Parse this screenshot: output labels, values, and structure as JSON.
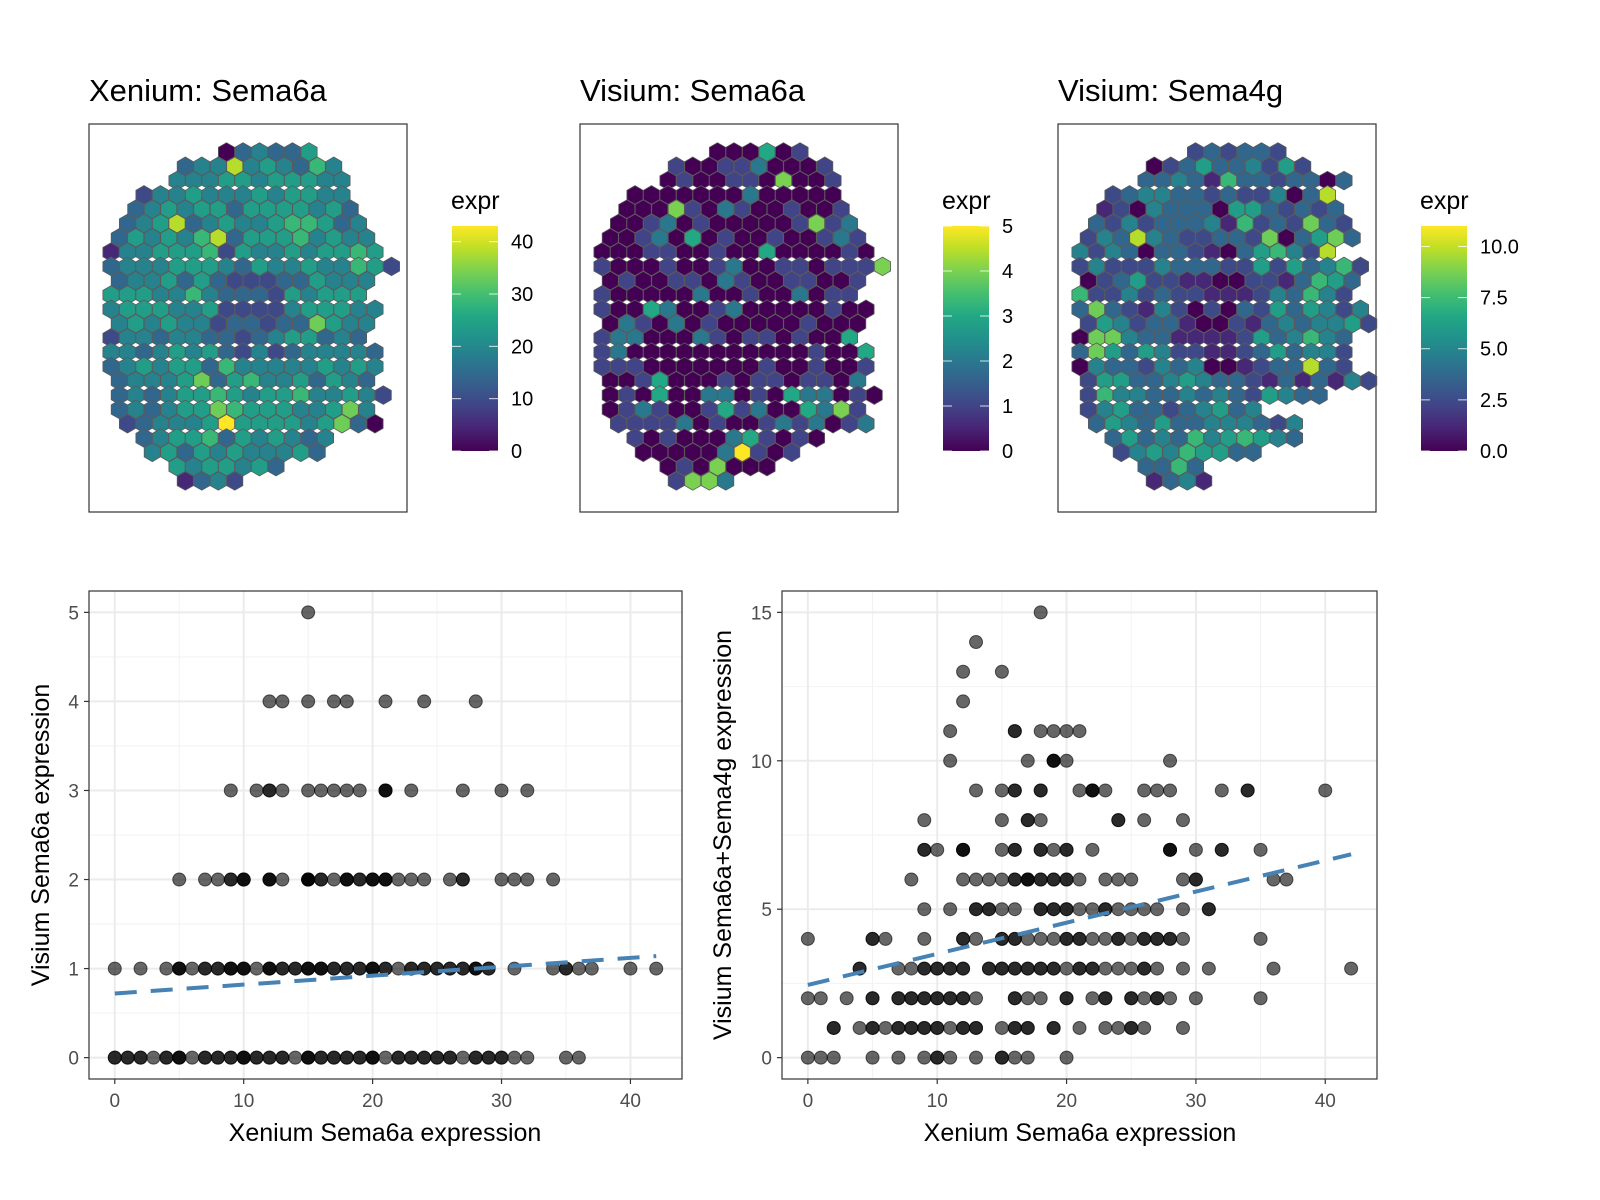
{
  "figure": {
    "hexmaps": [
      {
        "title": "Xenium: Sema6a",
        "legend_title": "expr",
        "range": [
          0,
          43
        ],
        "ticks": [
          0,
          10,
          20,
          30,
          40
        ],
        "tick_labels": [
          "0",
          "10",
          "20",
          "30",
          "40"
        ],
        "value_scale": "digit d maps to value d/9 * 43",
        "rows": [
          "034335",
          "3448454364",
          "44455455544",
          "2445444545544",
          "34545535555453",
          "345834544566534",
          "3545468355564544",
          "14455562544545565",
          "344455543544544652",
          "3445353222335444",
          "5554464333254555",
          "45554452222455544",
          "4545442332337544",
          "2443443323455343",
          "44345453242344443",
          "34545536444445454",
          "3444573564453543",
          "34345565455644542",
          "3434557655544574",
          "2344459555545730",
          "345563545434",
          "45354544453",
          "5455453",
          "1342"
        ]
      },
      {
        "title": "Visium: Sema6a",
        "legend_title": "expr",
        "range": [
          0,
          5
        ],
        "ticks": [
          0,
          1,
          2,
          3,
          4,
          5
        ],
        "tick_labels": [
          "0",
          "1",
          "2",
          "3",
          "4",
          "5"
        ],
        "value_scale": "digit d is the expression value",
        "rows": [
          "000301",
          "1001120001",
          "01001104001",
          "0000000200000",
          "00041021001001",
          "001201000001412",
          "0012030100100121",
          "00011001003000010",
          "100010012001101114",
          "0100110210011001",
          "1000002001002011",
          "10032001200000100",
          "0210201000001000",
          "1220002101101003",
          "12000000000001003",
          "11100000001001001",
          "0013000101101102",
          "01030022010322010",
          "0121001312003241",
          "1111201001212012",
          "101000231010",
          "0000025101",
          "0104000",
          "1442"
        ]
      },
      {
        "title": "Visium: Sema4g",
        "legend_title": "expr",
        "range": [
          0,
          11
        ],
        "ticks": [
          0,
          2.5,
          5,
          7.5,
          10
        ],
        "tick_labels": [
          "0.0",
          "2.5",
          "5.0",
          "7.5",
          "10.0"
        ],
        "value_scale": "digit d maps to value d/9 * 11",
        "rows": [
          "232332",
          "0235334252",
          "3343163323303",
          "23443323224038",
          "120433305532323",
          "3242333416232732",
          "24384322332703573",
          "4243033210356428",
          "242224333225253462",
          "02352211002213653",
          "62242322111243642",
          "373214202032535424",
          "254233100213434452",
          "07743311112534643",
          "37535422112353442",
          "04332434001233832",
          "255334543321313142",
          "264433434325433",
          "24533234534",
          "3543533444324",
          "353436456543",
          "245465533",
          "3363",
          "1341"
        ]
      }
    ],
    "chart_data": [
      {
        "type": "scatter",
        "title": "",
        "xlabel": "Xenium Sema6a expression",
        "ylabel": "Visium Sema6a expression",
        "xlim": [
          -2,
          44
        ],
        "ylim": [
          -0.24,
          5.24
        ],
        "xticks": [
          0,
          10,
          20,
          30,
          40
        ],
        "yticks": [
          0,
          1,
          2,
          3,
          4,
          5
        ],
        "grid": true,
        "point_alpha": 0.6,
        "trend_line": {
          "style": "dashed",
          "color": "#4682B4",
          "x": [
            0,
            42
          ],
          "y": [
            0.72,
            1.14
          ]
        },
        "rows": [
          {
            "y": 5,
            "x": [
              15
            ]
          },
          {
            "y": 4,
            "x": [
              12,
              13,
              15,
              17,
              18,
              21,
              24,
              28
            ]
          },
          {
            "y": 3,
            "x": [
              9,
              11,
              12,
              12,
              13,
              15,
              16,
              17,
              18,
              19,
              21,
              21,
              21,
              23,
              27,
              30,
              32
            ]
          },
          {
            "y": 2,
            "x": [
              5,
              7,
              8,
              9,
              9,
              10,
              10,
              10,
              12,
              12,
              12,
              13,
              15,
              15,
              15,
              15,
              16,
              16,
              17,
              18,
              18,
              18,
              19,
              19,
              20,
              20,
              20,
              21,
              21,
              21,
              22,
              23,
              24,
              26,
              27,
              27,
              30,
              31,
              32,
              34
            ]
          },
          {
            "y": 1,
            "x": [
              0,
              2,
              4,
              5,
              5,
              5,
              6,
              7,
              7,
              8,
              8,
              9,
              9,
              9,
              10,
              10,
              10,
              11,
              12,
              12,
              12,
              13,
              13,
              14,
              14,
              15,
              15,
              15,
              16,
              16,
              16,
              17,
              17,
              18,
              18,
              19,
              19,
              20,
              20,
              20,
              21,
              21,
              22,
              23,
              23,
              24,
              24,
              25,
              25,
              26,
              26,
              27,
              27,
              28,
              28,
              28,
              29,
              29,
              31,
              34,
              35,
              35,
              36,
              37,
              40,
              42
            ]
          },
          {
            "y": 0,
            "x": [
              0,
              0,
              1,
              1,
              2,
              2,
              3,
              4,
              4,
              5,
              5,
              5,
              6,
              7,
              7,
              8,
              8,
              9,
              9,
              10,
              10,
              10,
              11,
              11,
              12,
              12,
              13,
              13,
              14,
              15,
              15,
              15,
              16,
              16,
              17,
              17,
              18,
              18,
              19,
              19,
              20,
              20,
              20,
              21,
              22,
              22,
              23,
              23,
              24,
              24,
              25,
              25,
              26,
              26,
              27,
              28,
              28,
              29,
              29,
              30,
              30,
              31,
              32,
              35,
              36
            ]
          }
        ]
      },
      {
        "type": "scatter",
        "title": "",
        "xlabel": "Xenium Sema6a expression",
        "ylabel": "Visium Sema6a+Sema4g expression",
        "xlim": [
          -2,
          44
        ],
        "ylim": [
          -0.72,
          15.72
        ],
        "xticks": [
          0,
          10,
          20,
          30,
          40
        ],
        "yticks": [
          0,
          5,
          10,
          15
        ],
        "grid": true,
        "point_alpha": 0.6,
        "trend_line": {
          "style": "dashed",
          "color": "#4682B4",
          "x": [
            0,
            42
          ],
          "y": [
            2.45,
            6.85
          ]
        },
        "rows": [
          {
            "y": 15,
            "x": [
              18
            ]
          },
          {
            "y": 14,
            "x": [
              13
            ]
          },
          {
            "y": 13,
            "x": [
              12,
              15
            ]
          },
          {
            "y": 12,
            "x": [
              12
            ]
          },
          {
            "y": 11,
            "x": [
              11,
              16,
              16,
              18,
              19,
              20,
              21
            ]
          },
          {
            "y": 10,
            "x": [
              11,
              17,
              19,
              19,
              19,
              20,
              28
            ]
          },
          {
            "y": 9,
            "x": [
              13,
              15,
              16,
              16,
              18,
              18,
              21,
              22,
              22,
              22,
              23,
              26,
              27,
              28,
              32,
              34,
              34,
              40
            ]
          },
          {
            "y": 8,
            "x": [
              9,
              15,
              17,
              17,
              18,
              24,
              24,
              26,
              29
            ]
          },
          {
            "y": 7,
            "x": [
              9,
              9,
              10,
              12,
              12,
              12,
              15,
              16,
              16,
              18,
              18,
              19,
              20,
              20,
              22,
              28,
              28,
              28,
              30,
              32,
              32,
              35
            ]
          },
          {
            "y": 6,
            "x": [
              8,
              12,
              13,
              14,
              15,
              16,
              16,
              17,
              17,
              17,
              18,
              18,
              19,
              19,
              20,
              20,
              21,
              23,
              24,
              25,
              29,
              30,
              30,
              36,
              37
            ]
          },
          {
            "y": 5,
            "x": [
              9,
              11,
              13,
              13,
              14,
              14,
              15,
              16,
              18,
              18,
              19,
              19,
              20,
              20,
              21,
              22,
              23,
              23,
              24,
              25,
              26,
              27,
              29,
              31,
              31
            ]
          },
          {
            "y": 4,
            "x": [
              0,
              5,
              5,
              6,
              9,
              12,
              12,
              13,
              15,
              15,
              16,
              16,
              17,
              18,
              19,
              20,
              20,
              21,
              21,
              22,
              23,
              24,
              24,
              25,
              26,
              26,
              27,
              27,
              28,
              28,
              29,
              35
            ]
          },
          {
            "y": 3,
            "x": [
              4,
              4,
              7,
              8,
              9,
              9,
              10,
              10,
              11,
              11,
              12,
              12,
              14,
              14,
              15,
              15,
              16,
              16,
              17,
              17,
              18,
              18,
              19,
              19,
              20,
              21,
              21,
              22,
              22,
              23,
              24,
              25,
              26,
              26,
              27,
              29,
              31,
              36,
              42
            ]
          },
          {
            "y": 2,
            "x": [
              0,
              1,
              3,
              5,
              5,
              7,
              7,
              8,
              8,
              9,
              9,
              10,
              10,
              11,
              11,
              12,
              12,
              13,
              16,
              16,
              17,
              18,
              20,
              20,
              22,
              23,
              23,
              25,
              25,
              26,
              27,
              27,
              28,
              30,
              35
            ]
          },
          {
            "y": 1,
            "x": [
              2,
              2,
              4,
              5,
              5,
              6,
              7,
              7,
              8,
              8,
              9,
              9,
              10,
              10,
              11,
              12,
              12,
              13,
              13,
              15,
              16,
              16,
              17,
              17,
              19,
              19,
              21,
              23,
              24,
              25,
              25,
              26,
              29
            ]
          },
          {
            "y": 0,
            "x": [
              0,
              1,
              2,
              5,
              7,
              9,
              10,
              10,
              11,
              13,
              15,
              15,
              16,
              17,
              20
            ]
          }
        ]
      }
    ]
  }
}
